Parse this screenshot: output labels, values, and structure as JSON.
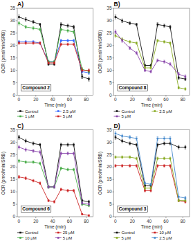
{
  "chart_data": [
    {
      "type": "line",
      "title": "A)",
      "annotations": [
        "Compound 2"
      ],
      "xlabel": "Time (min)",
      "ylabel": "OCR (pmol/min/SRB)",
      "x": [
        0,
        8,
        17,
        25,
        35,
        42,
        50,
        58,
        65,
        75,
        83
      ],
      "xlim": [
        -2,
        88
      ],
      "xticks": [
        0,
        20,
        40,
        60,
        80
      ],
      "ylim": [
        0,
        35
      ],
      "yticks": [
        0,
        5,
        10,
        15,
        20,
        25,
        30,
        35
      ],
      "grid": false,
      "legend": "bottom",
      "series": [
        {
          "name": "Control",
          "color": "#111111",
          "marker": "square",
          "values": [
            31.5,
            30.5,
            29.5,
            28.5,
            12.5,
            12.5,
            28.5,
            28.0,
            27.5,
            7.5,
            6.5
          ],
          "errors": [
            0.8,
            0.7,
            0.6,
            0.5,
            0.5,
            0.5,
            0.7,
            0.6,
            0.7,
            0.8,
            0.8
          ]
        },
        {
          "name": "2.5 μM",
          "color": "#3366ff",
          "marker": "square",
          "values": [
            21.5,
            21.5,
            21.5,
            21.0,
            13.5,
            13.5,
            22.0,
            22.0,
            22.0,
            9.5,
            9.0
          ],
          "errors": [
            0.5,
            0.5,
            0.5,
            0.5,
            0.5,
            0.5,
            0.5,
            0.5,
            0.5,
            0.6,
            0.6
          ]
        },
        {
          "name": "1 μM",
          "color": "#44aa44",
          "marker": "square",
          "values": [
            29.0,
            27.5,
            27.0,
            26.5,
            13.5,
            13.5,
            26.5,
            26.0,
            25.5,
            10.5,
            9.5
          ],
          "errors": [
            0.7,
            0.6,
            0.6,
            0.6,
            0.5,
            0.5,
            0.6,
            0.6,
            0.6,
            0.7,
            0.7
          ]
        },
        {
          "name": "5 μM",
          "color": "#cc2222",
          "marker": "square",
          "values": [
            21.0,
            21.0,
            21.0,
            21.0,
            13.0,
            13.0,
            20.5,
            20.5,
            20.5,
            10.0,
            10.0
          ],
          "errors": [
            0.5,
            0.5,
            0.5,
            0.5,
            0.5,
            0.5,
            0.5,
            0.5,
            0.5,
            0.6,
            0.6
          ]
        }
      ]
    },
    {
      "type": "line",
      "title": "B)",
      "annotations": [
        "Compound 8"
      ],
      "xlabel": "Time (min)",
      "ylabel": "OCR (pmol/min/SRB)",
      "x": [
        0,
        8,
        17,
        25,
        35,
        42,
        50,
        58,
        65,
        75,
        83
      ],
      "xlim": [
        -2,
        88
      ],
      "xticks": [
        0,
        20,
        40,
        60,
        80
      ],
      "ylim": [
        0,
        35
      ],
      "yticks": [
        0,
        5,
        10,
        15,
        20,
        25,
        30,
        35
      ],
      "grid": false,
      "legend": "bottom",
      "series": [
        {
          "name": "Control",
          "color": "#111111",
          "marker": "square",
          "values": [
            31.5,
            30.0,
            29.0,
            28.5,
            12.0,
            12.0,
            28.5,
            28.0,
            27.5,
            7.0,
            6.5
          ],
          "errors": [
            0.8,
            0.7,
            0.6,
            0.5,
            0.5,
            0.5,
            0.7,
            0.6,
            0.7,
            0.6,
            0.6
          ]
        },
        {
          "name": "2.5 μM",
          "color": "#88aa22",
          "marker": "square",
          "values": [
            24.0,
            22.5,
            21.5,
            21.0,
            11.0,
            11.0,
            22.0,
            21.5,
            21.0,
            3.0,
            2.5
          ],
          "errors": [
            0.7,
            0.6,
            0.5,
            0.5,
            0.5,
            0.5,
            0.5,
            0.5,
            0.5,
            0.5,
            0.5
          ]
        },
        {
          "name": "5 μM",
          "color": "#8844aa",
          "marker": "square",
          "values": [
            25.5,
            22.0,
            19.0,
            17.0,
            10.0,
            9.5,
            14.0,
            13.5,
            12.5,
            8.5,
            7.5
          ],
          "errors": [
            0.8,
            0.7,
            0.6,
            0.6,
            0.5,
            0.5,
            0.6,
            0.6,
            0.6,
            0.7,
            0.7
          ]
        }
      ]
    },
    {
      "type": "line",
      "title": "C)",
      "annotations": [
        "Compound 6"
      ],
      "xlabel": "Time (min)",
      "ylabel": "OCR (pmol/min/SRB)",
      "x": [
        0,
        8,
        17,
        25,
        35,
        42,
        50,
        58,
        65,
        75,
        83
      ],
      "xlim": [
        -2,
        88
      ],
      "xticks": [
        0,
        20,
        40,
        60,
        80
      ],
      "ylim": [
        0,
        35
      ],
      "yticks": [
        0,
        5,
        10,
        15,
        20,
        25,
        30,
        35
      ],
      "grid": false,
      "legend": "bottom",
      "series": [
        {
          "name": "Control",
          "color": "#111111",
          "marker": "square",
          "values": [
            32.0,
            30.5,
            29.5,
            29.0,
            12.0,
            12.0,
            29.0,
            29.0,
            29.0,
            6.5,
            6.0
          ],
          "errors": [
            0.8,
            0.7,
            0.6,
            0.5,
            0.5,
            0.5,
            0.6,
            0.6,
            0.6,
            0.6,
            0.6
          ]
        },
        {
          "name": "25 μM",
          "color": "#cc2222",
          "marker": "square",
          "values": [
            16.0,
            15.5,
            14.5,
            13.5,
            6.5,
            6.0,
            11.0,
            10.5,
            10.5,
            1.0,
            0.5
          ],
          "errors": [
            0.6,
            0.6,
            0.5,
            0.5,
            0.5,
            0.5,
            0.5,
            0.5,
            0.5,
            0.3,
            0.3
          ]
        },
        {
          "name": "10 μM",
          "color": "#44aa44",
          "marker": "square",
          "values": [
            22.5,
            22.0,
            22.0,
            21.5,
            12.0,
            12.0,
            19.5,
            19.0,
            19.0,
            5.0,
            4.5
          ],
          "errors": [
            0.6,
            0.5,
            0.5,
            0.5,
            0.5,
            0.5,
            0.5,
            0.5,
            0.5,
            0.5,
            0.5
          ]
        },
        {
          "name": "5 μM",
          "color": "#8844aa",
          "marker": "square",
          "values": [
            28.0,
            27.0,
            26.5,
            26.0,
            12.0,
            12.0,
            25.5,
            25.5,
            25.5,
            5.5,
            5.0
          ],
          "errors": [
            0.7,
            0.6,
            0.6,
            0.6,
            0.5,
            0.5,
            0.6,
            0.6,
            0.6,
            0.6,
            0.6
          ]
        }
      ]
    },
    {
      "type": "line",
      "title": "D)",
      "annotations": [
        "Compound 3"
      ],
      "xlabel": "Time (min)",
      "ylabel": "OCR (pmol/min/SRB)",
      "x": [
        0,
        8,
        17,
        25,
        35,
        42,
        50,
        58,
        65,
        75,
        83
      ],
      "xlim": [
        -2,
        88
      ],
      "xticks": [
        0,
        20,
        40,
        60,
        80
      ],
      "ylim": [
        0,
        35
      ],
      "yticks": [
        0,
        5,
        10,
        15,
        20,
        25,
        30,
        35
      ],
      "grid": false,
      "legend": "bottom",
      "series": [
        {
          "name": "Control",
          "color": "#111111",
          "marker": "square",
          "values": [
            32.0,
            30.5,
            29.5,
            29.0,
            12.5,
            12.5,
            29.0,
            29.5,
            29.5,
            28.0,
            28.0
          ],
          "errors": [
            0.8,
            0.7,
            0.6,
            0.5,
            0.5,
            0.5,
            0.6,
            0.6,
            0.6,
            0.7,
            0.7
          ]
        },
        {
          "name": "10 μM",
          "color": "#cc2222",
          "marker": "square",
          "values": [
            20.5,
            20.5,
            20.5,
            20.5,
            10.5,
            10.5,
            20.5,
            20.5,
            20.5,
            6.5,
            6.0
          ],
          "errors": [
            0.5,
            0.5,
            0.5,
            0.5,
            0.5,
            0.5,
            0.5,
            0.5,
            0.5,
            0.5,
            0.5
          ]
        },
        {
          "name": "5 μM",
          "color": "#88aa22",
          "marker": "square",
          "values": [
            24.0,
            24.0,
            24.0,
            23.5,
            11.5,
            11.5,
            23.5,
            23.5,
            23.5,
            6.5,
            6.5
          ],
          "errors": [
            0.5,
            0.5,
            0.5,
            0.5,
            0.5,
            0.5,
            0.5,
            0.5,
            0.5,
            0.5,
            0.5
          ]
        },
        {
          "name": "2.5 μM",
          "color": "#4488cc",
          "marker": "square",
          "values": [
            33.5,
            32.5,
            32.0,
            31.5,
            13.5,
            13.0,
            31.5,
            31.5,
            31.5,
            8.0,
            7.5
          ],
          "errors": [
            0.8,
            0.7,
            0.7,
            0.7,
            0.5,
            0.5,
            0.7,
            0.7,
            0.7,
            0.7,
            0.7
          ]
        }
      ]
    }
  ]
}
